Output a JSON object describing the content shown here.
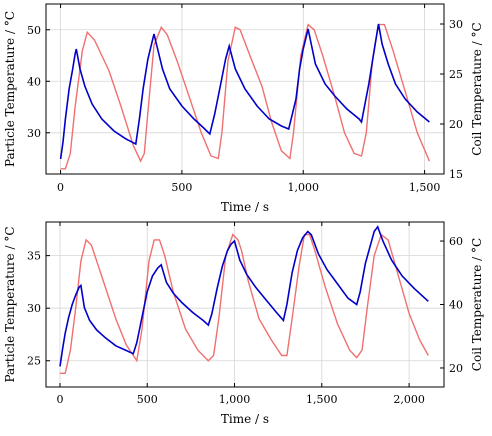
{
  "chart_data": [
    {
      "type": "line",
      "xlabel": "Time / s",
      "ylabel_left": "Particle Temperature / °C",
      "ylabel_right": "Coil Temperature / °C",
      "xlim": [
        -60,
        1580
      ],
      "ylim_left": [
        22,
        55
      ],
      "ylim_right": [
        15,
        32
      ],
      "x_ticks": [
        0,
        500,
        1000,
        1500
      ],
      "x_tick_labels": [
        "0",
        "500",
        "1,000",
        "1,500"
      ],
      "y_left_ticks": [
        30,
        40,
        50
      ],
      "y_left_tick_labels": [
        "30",
        "40",
        "50"
      ],
      "y_right_ticks": [
        15,
        20,
        25,
        30
      ],
      "y_right_tick_labels": [
        "15",
        "20",
        "25",
        "30"
      ],
      "grid": true,
      "series": [
        {
          "axis": "left",
          "color": "#f07070",
          "x": [
            0,
            20,
            40,
            60,
            90,
            110,
            140,
            200,
            250,
            300,
            330,
            345,
            360,
            385,
            415,
            440,
            480,
            530,
            580,
            620,
            650,
            665,
            690,
            720,
            740,
            780,
            830,
            870,
            910,
            945,
            960,
            990,
            1020,
            1045,
            1080,
            1130,
            1170,
            1210,
            1240,
            1260,
            1285,
            1310,
            1335,
            1370,
            1420,
            1470,
            1520
          ],
          "values": [
            23,
            23,
            26,
            35,
            46,
            49.5,
            48,
            42,
            35,
            27.5,
            24.5,
            26,
            34,
            47,
            50.5,
            49,
            44,
            37,
            30,
            25.5,
            25,
            30,
            44,
            50.5,
            50,
            45,
            39,
            32,
            26.5,
            25,
            30,
            45,
            51,
            50,
            45,
            37,
            30,
            26,
            25.5,
            30,
            44,
            51,
            51,
            46,
            38,
            30,
            24.5
          ]
        },
        {
          "axis": "right",
          "color": "#0000c8",
          "x": [
            0,
            10,
            20,
            35,
            50,
            60,
            65,
            80,
            100,
            130,
            170,
            220,
            270,
            310,
            325,
            340,
            360,
            385,
            395,
            420,
            450,
            500,
            550,
            590,
            615,
            635,
            660,
            680,
            695,
            720,
            760,
            810,
            860,
            910,
            940,
            970,
            985,
            1000,
            1020,
            1050,
            1090,
            1130,
            1180,
            1230,
            1240,
            1270,
            1300,
            1310,
            1325,
            1350,
            1380,
            1420,
            1470,
            1520
          ],
          "values": [
            16.5,
            18.2,
            20.5,
            23.5,
            25.5,
            27,
            27.5,
            25.5,
            23.8,
            22,
            20.5,
            19.3,
            18.5,
            18,
            20.5,
            23.5,
            26.5,
            29,
            28,
            25.5,
            23.5,
            21.8,
            20.5,
            19.6,
            19,
            21,
            24,
            26.5,
            27.8,
            25.5,
            23.5,
            21.8,
            20.5,
            19.8,
            19.5,
            22.5,
            25.5,
            27.5,
            29.5,
            26,
            24,
            22.8,
            21.5,
            20.5,
            20.2,
            24,
            28.5,
            30,
            28,
            26,
            24,
            22.5,
            21.2,
            20.2
          ]
        }
      ]
    },
    {
      "type": "line",
      "xlabel": "Time / s",
      "ylabel_left": "Particle Temperature / °C",
      "ylabel_right": "Coil Temperature / °C",
      "xlim": [
        -80,
        2200
      ],
      "ylim_left": [
        22.5,
        38.2
      ],
      "ylim_right": [
        14,
        66
      ],
      "x_ticks": [
        0,
        500,
        1000,
        1500,
        2000
      ],
      "x_tick_labels": [
        "0",
        "500",
        "1,000",
        "1,500",
        "2,000"
      ],
      "y_left_ticks": [
        25,
        30,
        35
      ],
      "y_left_tick_labels": [
        "25",
        "30",
        "35"
      ],
      "y_right_ticks": [
        20,
        40,
        60
      ],
      "y_right_tick_labels": [
        "20",
        "40",
        "60"
      ],
      "grid": true,
      "series": [
        {
          "axis": "left",
          "color": "#f07070",
          "x": [
            0,
            30,
            60,
            90,
            120,
            150,
            180,
            250,
            320,
            380,
            420,
            440,
            470,
            510,
            540,
            570,
            600,
            650,
            720,
            790,
            850,
            880,
            910,
            950,
            990,
            1020,
            1040,
            1080,
            1140,
            1210,
            1270,
            1300,
            1330,
            1370,
            1400,
            1430,
            1460,
            1520,
            1590,
            1660,
            1700,
            1730,
            1760,
            1800,
            1840,
            1880,
            1940,
            2000,
            2060,
            2110
          ],
          "values": [
            23.8,
            23.8,
            26,
            30,
            34.5,
            36.5,
            36,
            32.5,
            29,
            26.5,
            25.5,
            25,
            28,
            34.5,
            36.5,
            36.5,
            35,
            31.5,
            28,
            26,
            25,
            25.5,
            29,
            35,
            37,
            36.5,
            35.5,
            32.5,
            29,
            27,
            25.5,
            25.5,
            29,
            34,
            37,
            37,
            35.5,
            32,
            28.5,
            26,
            25.3,
            26,
            30,
            35,
            37,
            36.5,
            33,
            29.5,
            27,
            25.5
          ]
        },
        {
          "axis": "right",
          "color": "#0000c8",
          "x": [
            0,
            15,
            30,
            50,
            70,
            90,
            110,
            120,
            140,
            170,
            210,
            260,
            320,
            380,
            420,
            440,
            470,
            500,
            530,
            560,
            580,
            610,
            650,
            700,
            760,
            820,
            850,
            870,
            900,
            930,
            960,
            980,
            1000,
            1030,
            1070,
            1120,
            1180,
            1240,
            1280,
            1300,
            1330,
            1360,
            1390,
            1420,
            1440,
            1480,
            1530,
            1590,
            1650,
            1700,
            1720,
            1750,
            1780,
            1800,
            1820,
            1850,
            1900,
            1960,
            2030,
            2110
          ],
          "values": [
            20.5,
            26,
            31,
            36,
            40,
            43,
            45.5,
            46,
            39,
            35,
            32,
            29.5,
            27,
            25.5,
            24.5,
            28,
            36,
            44,
            49,
            51.5,
            52.5,
            47,
            43.5,
            40.5,
            37.5,
            35,
            33.5,
            37,
            45,
            52,
            57,
            59,
            60,
            54,
            49.5,
            45.5,
            41.5,
            37.5,
            35,
            40,
            50,
            57,
            61,
            63,
            62,
            56,
            51,
            46.5,
            42,
            40,
            44,
            53,
            59,
            63,
            64.5,
            60,
            54,
            49,
            45,
            41
          ]
        }
      ]
    }
  ]
}
